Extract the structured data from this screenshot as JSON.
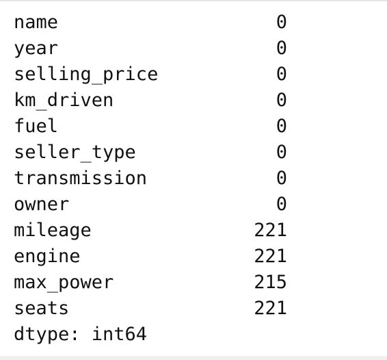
{
  "output": {
    "rows": [
      {
        "key": "name",
        "value": "0"
      },
      {
        "key": "year",
        "value": "0"
      },
      {
        "key": "selling_price",
        "value": "0"
      },
      {
        "key": "km_driven",
        "value": "0"
      },
      {
        "key": "fuel",
        "value": "0"
      },
      {
        "key": "seller_type",
        "value": "0"
      },
      {
        "key": "transmission",
        "value": "0"
      },
      {
        "key": "owner",
        "value": "0"
      },
      {
        "key": "mileage",
        "value": "221"
      },
      {
        "key": "engine",
        "value": "221"
      },
      {
        "key": "max_power",
        "value": "215"
      },
      {
        "key": "seats",
        "value": "221"
      }
    ],
    "dtype": "dtype: int64"
  }
}
